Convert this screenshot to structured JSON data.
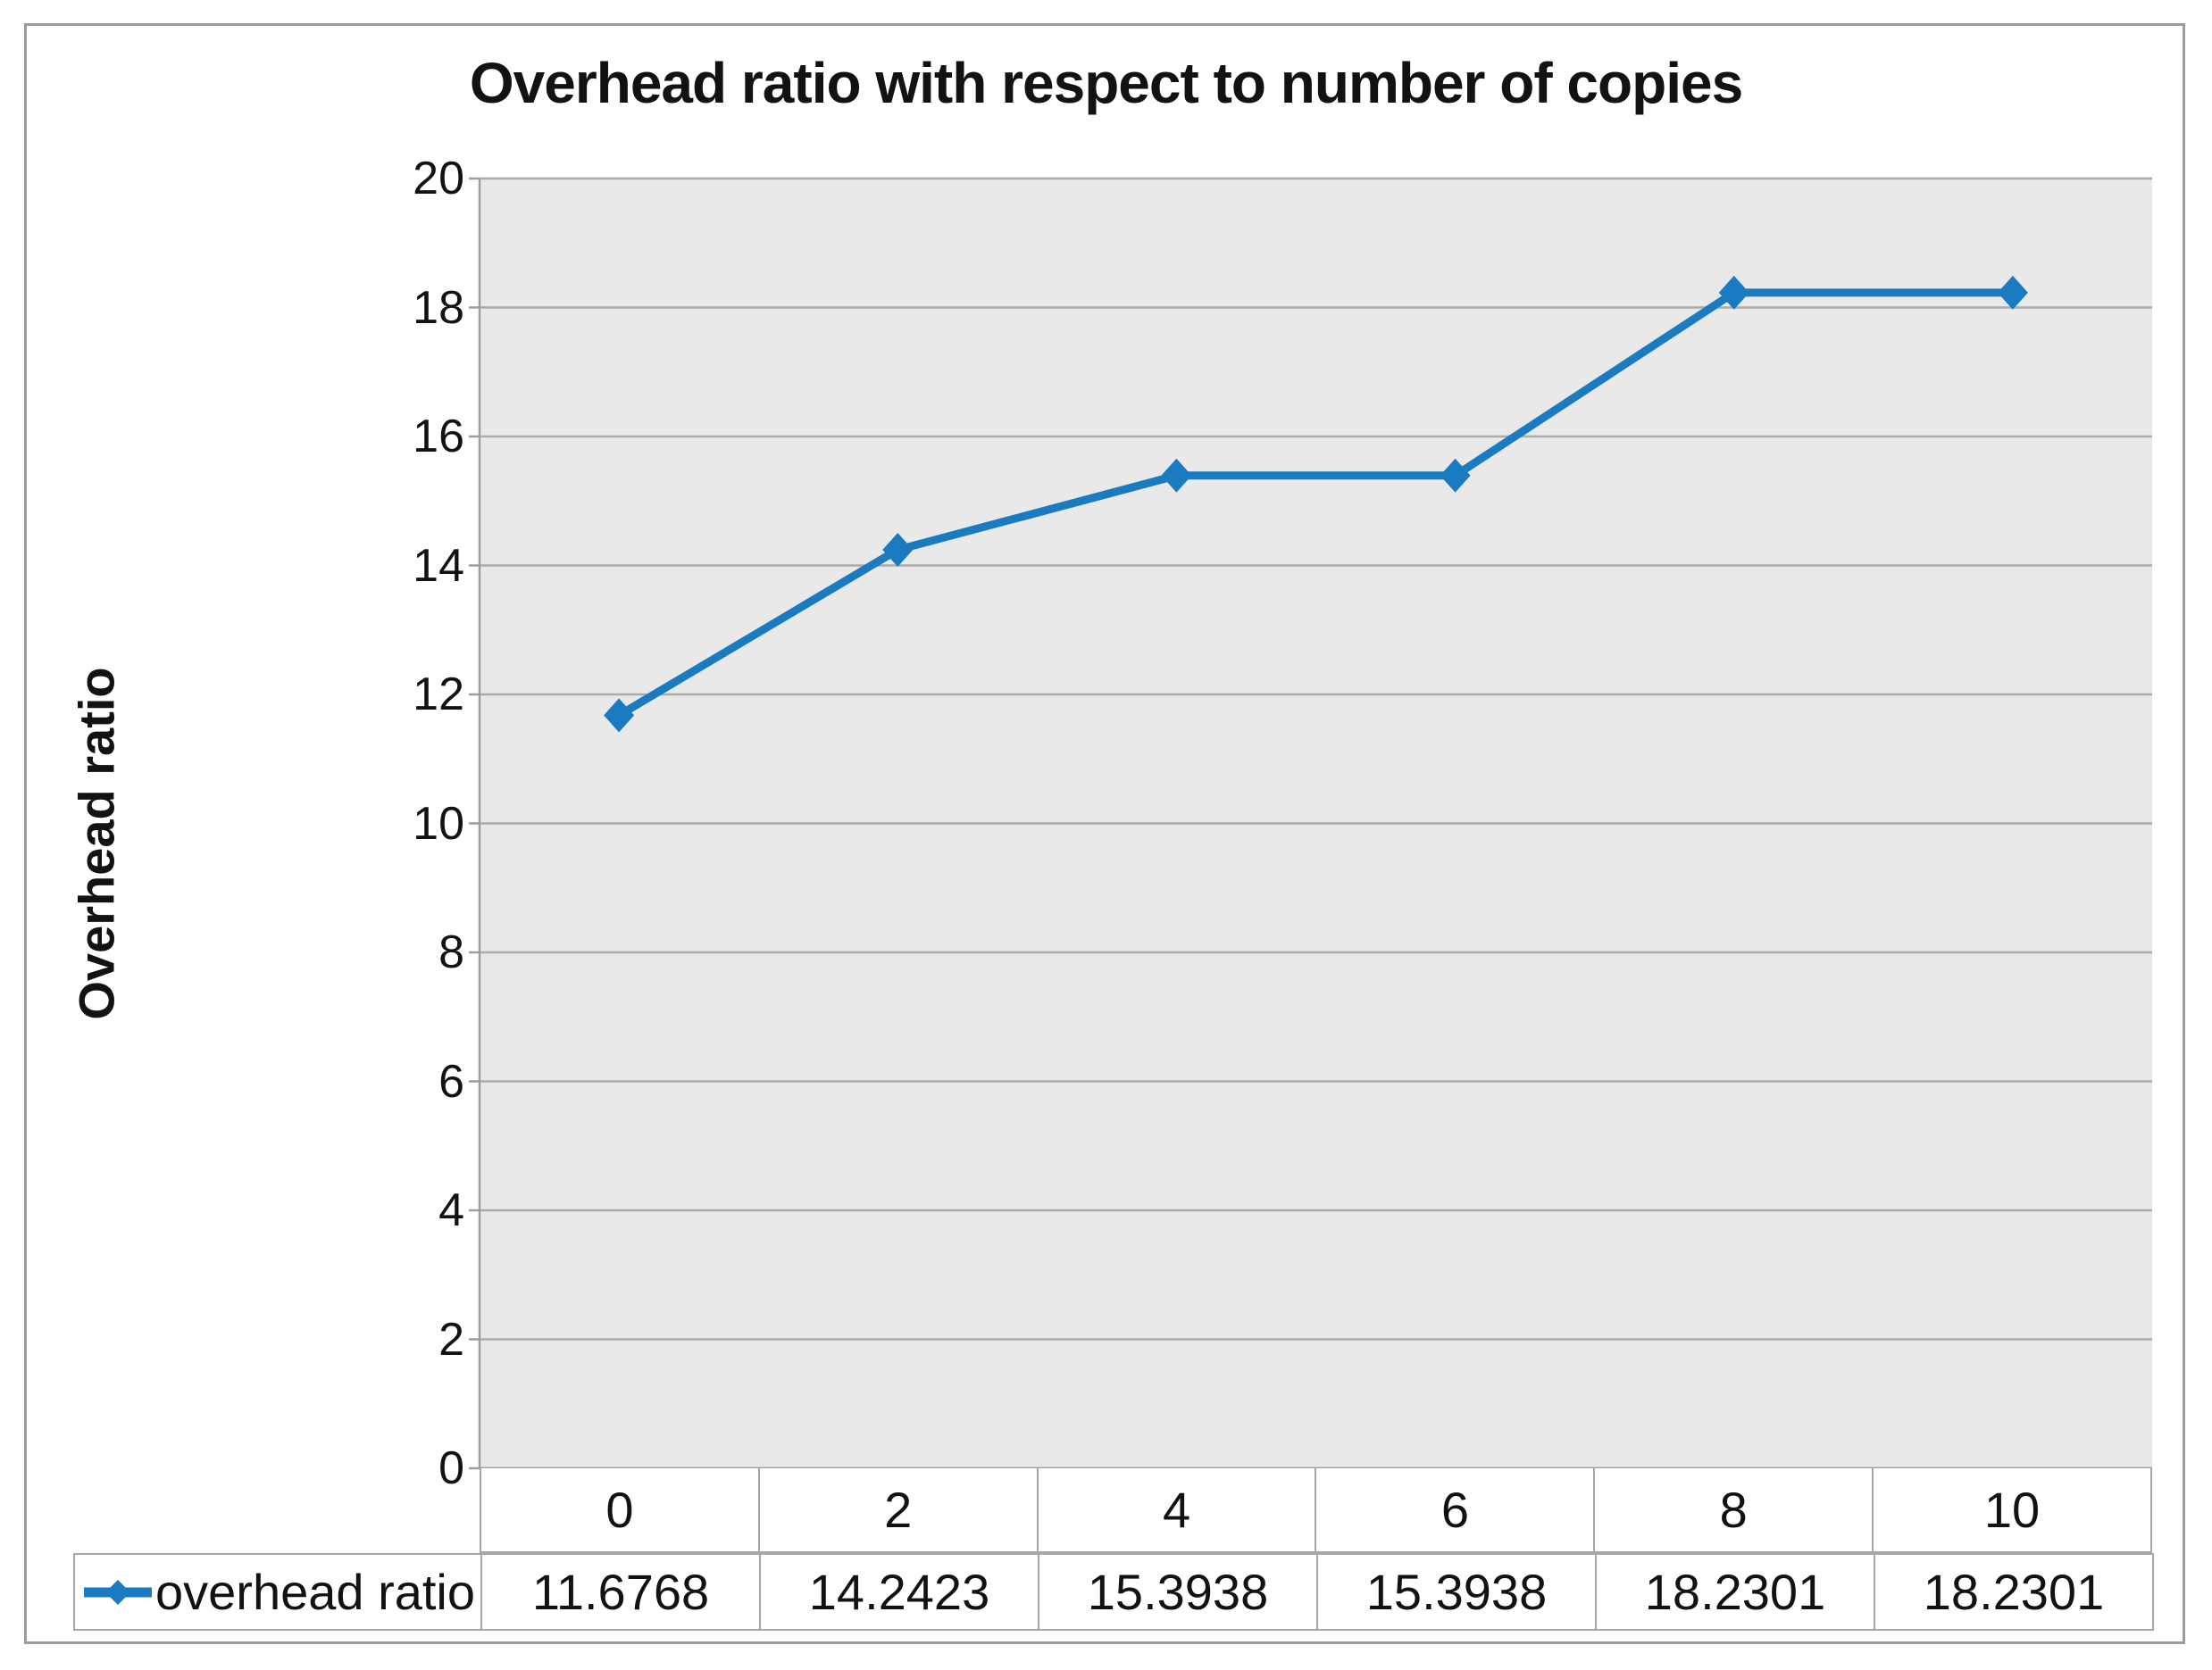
{
  "chart_data": {
    "type": "line",
    "title": "Overhead ratio with respect to number of copies",
    "ylabel": "Overhead ratio",
    "xlabel": "",
    "categories": [
      "0",
      "2",
      "4",
      "6",
      "8",
      "10"
    ],
    "series": [
      {
        "name": "overhead ratio",
        "values": [
          11.6768,
          14.2423,
          15.3938,
          15.3938,
          18.2301,
          18.2301
        ],
        "color": "#1b7bc0",
        "marker": "diamond"
      }
    ],
    "ylim": [
      0,
      20
    ],
    "ytick_step": 2,
    "yticks": [
      "20",
      "18",
      "16",
      "14",
      "12",
      "10",
      "8",
      "6",
      "4",
      "2",
      "0"
    ],
    "grid": "horizontal-major",
    "gridline_color": "#ababab",
    "axis_color": "#9e9e9e",
    "plot_bg": "#e9e9e9",
    "legend_position": "bottom-left",
    "data_table_shown": true
  }
}
